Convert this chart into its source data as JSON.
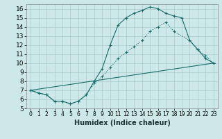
{
  "xlabel": "Humidex (Indice chaleur)",
  "xlim": [
    -0.5,
    23.5
  ],
  "ylim": [
    5,
    16.5
  ],
  "xticks": [
    0,
    1,
    2,
    3,
    4,
    5,
    6,
    7,
    8,
    9,
    10,
    11,
    12,
    13,
    14,
    15,
    16,
    17,
    18,
    19,
    20,
    21,
    22,
    23
  ],
  "yticks": [
    5,
    6,
    7,
    8,
    9,
    10,
    11,
    12,
    13,
    14,
    15,
    16
  ],
  "bg_color": "#cde8e8",
  "grid_color": "#aacccc",
  "line_color": "#1a6b6b",
  "line1_x": [
    0,
    1,
    2,
    3,
    4,
    5,
    6,
    7,
    8,
    9,
    10,
    11,
    12,
    13,
    14,
    15,
    16,
    17,
    18,
    19,
    20,
    21,
    22,
    23
  ],
  "line1_y": [
    7.0,
    6.7,
    6.5,
    5.8,
    5.8,
    5.5,
    5.8,
    6.5,
    8.0,
    9.4,
    12.0,
    14.2,
    15.0,
    15.5,
    15.8,
    16.2,
    16.0,
    15.5,
    15.2,
    15.0,
    12.5,
    11.5,
    10.5,
    10.0
  ],
  "line2_x": [
    0,
    1,
    2,
    3,
    4,
    5,
    6,
    7,
    8,
    9,
    10,
    11,
    12,
    13,
    14,
    15,
    16,
    17,
    18,
    20,
    21,
    22,
    23
  ],
  "line2_y": [
    7.0,
    6.7,
    6.5,
    5.8,
    5.8,
    5.5,
    5.8,
    6.5,
    7.8,
    8.5,
    9.5,
    10.5,
    11.2,
    11.8,
    12.5,
    13.5,
    14.0,
    14.5,
    13.5,
    12.5,
    11.5,
    10.8,
    10.0
  ],
  "line3_x": [
    0,
    23
  ],
  "line3_y": [
    7.0,
    10.0
  ],
  "fontsize_xlabel": 7,
  "fontsize_ticks": 6
}
